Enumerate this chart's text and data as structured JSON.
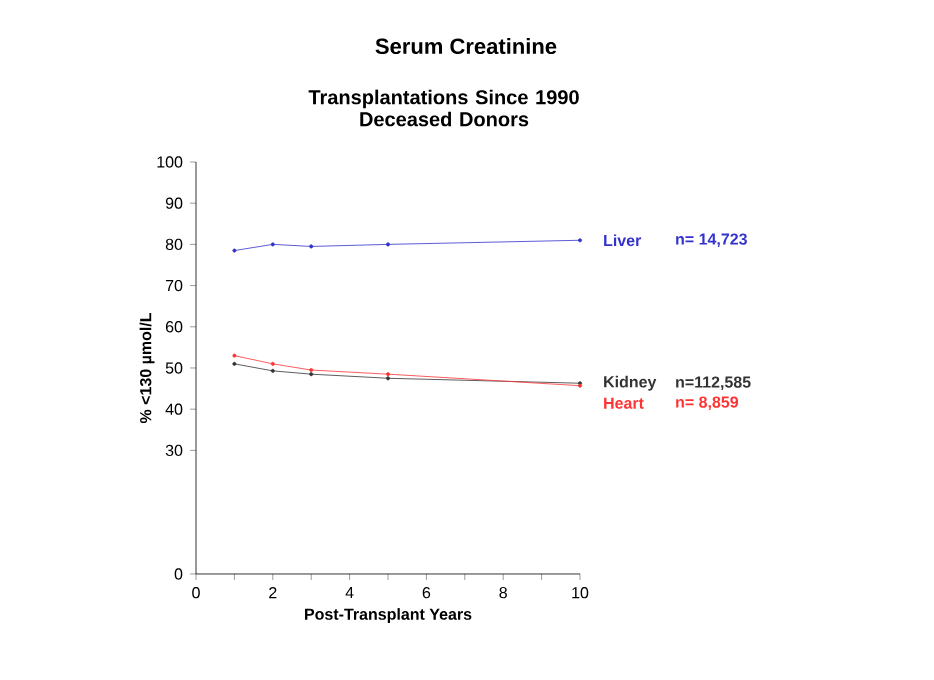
{
  "chart_data": {
    "type": "line",
    "title": "Serum Creatinine",
    "subtitle": "Transplantations Since 1990\nDeceased Donors",
    "xlabel": "Post-Transplant Years",
    "ylabel": "% <130 µmol/L",
    "xlim": [
      0,
      10
    ],
    "ylim": [
      0,
      100
    ],
    "xticks": [
      0,
      {
        "value": 1,
        "label": null
      },
      2,
      {
        "value": 3,
        "label": null
      },
      4,
      {
        "value": 5,
        "label": null
      },
      6,
      {
        "value": 7,
        "label": null
      },
      8,
      {
        "value": 9,
        "label": null
      },
      10
    ],
    "yticks": [
      0,
      30,
      40,
      50,
      60,
      70,
      80,
      90,
      100
    ],
    "marker": "circle",
    "line_style": "solid",
    "series": [
      {
        "name": "Liver",
        "color": "#3333cc",
        "x": [
          1,
          2,
          3,
          5,
          10
        ],
        "values": [
          78.5,
          80,
          79.5,
          80,
          81
        ]
      },
      {
        "name": "Kidney",
        "color": "#333333",
        "x": [
          1,
          2,
          3,
          5,
          10
        ],
        "values": [
          51,
          49.3,
          48.5,
          47.5,
          46.3
        ]
      },
      {
        "name": "Heart",
        "color": "#ff3333",
        "x": [
          1,
          2,
          3,
          5,
          10
        ],
        "values": [
          53,
          51,
          49.5,
          48.5,
          45.7
        ]
      }
    ],
    "annotations": [
      "n= 14,723",
      "n=112,585",
      "n= 8,859"
    ]
  }
}
